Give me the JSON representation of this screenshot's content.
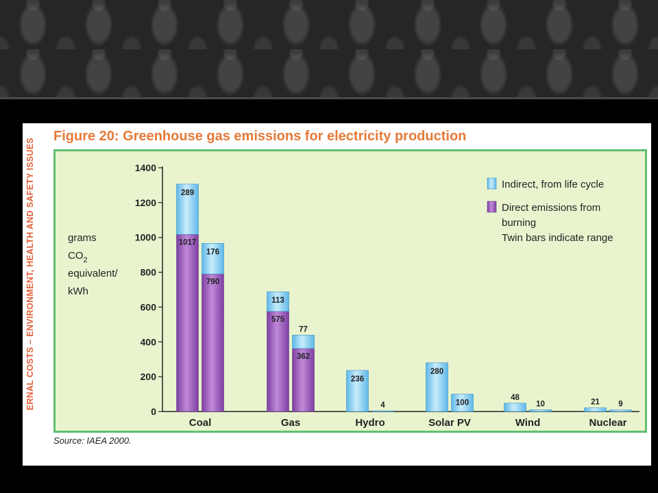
{
  "slide": {
    "side_text": "ERNAL COSTS – ENVIRONMENT, HEALTH AND SAFETY ISSUES",
    "source": "Source:   IAEA 2000."
  },
  "chart_data": {
    "type": "bar",
    "stacked": true,
    "title": "Figure 20: Greenhouse gas emissions for electricity production",
    "ylabel_lines": [
      "grams",
      "CO2",
      "equivalent/",
      "kWh"
    ],
    "ylim": [
      0,
      1400
    ],
    "yticks": [
      0,
      200,
      400,
      600,
      800,
      1000,
      1200,
      1400
    ],
    "categories": [
      "Coal",
      "Gas",
      "Hydro",
      "Solar PV",
      "Wind",
      "Nuclear"
    ],
    "note": "Twin bars indicate range",
    "colors": {
      "indirect": "#8fd3f4",
      "direct": "#9a5fb8"
    },
    "series": [
      {
        "name": "Direct emissions from burning",
        "values": [
          [
            1017,
            790
          ],
          [
            575,
            362
          ],
          [
            0,
            0
          ],
          [
            0,
            0
          ],
          [
            0,
            0
          ],
          [
            0,
            0
          ]
        ]
      },
      {
        "name": "Indirect, from life cycle",
        "values": [
          [
            289,
            176
          ],
          [
            113,
            77
          ],
          [
            236,
            4
          ],
          [
            280,
            100
          ],
          [
            48,
            10
          ],
          [
            21,
            9
          ]
        ]
      }
    ],
    "legend": [
      {
        "key": "indirect",
        "lines": [
          "Indirect, from life cycle"
        ]
      },
      {
        "key": "direct",
        "lines": [
          "Direct emissions from",
          "burning",
          "Twin bars indicate range"
        ]
      }
    ],
    "legend_position": "top-right"
  }
}
